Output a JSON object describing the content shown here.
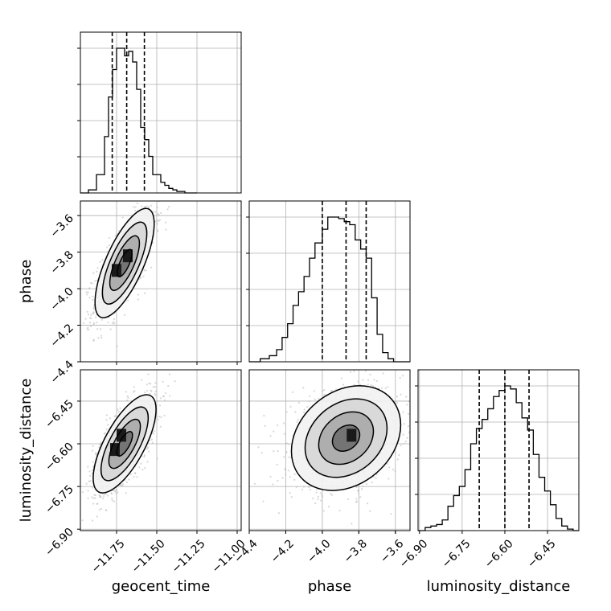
{
  "chart_data": {
    "type": "corner",
    "grid": true,
    "colors": {
      "hist": "#000000",
      "grid": "#b0b0b0",
      "samples": "#bdbdbd"
    },
    "params": [
      "geocent_time",
      "phase",
      "luminosity_distance"
    ],
    "axis_labels": [
      "geocent_time",
      "phase",
      "luminosity_distance"
    ],
    "ranges": {
      "geocent_time": [
        -11.975,
        -10.975
      ],
      "phase": [
        -4.4,
        -3.52
      ],
      "luminosity_distance": [
        -6.905,
        -6.34
      ]
    },
    "ticks": {
      "geocent_time": {
        "values": [
          -11.75,
          -11.5,
          -11.25,
          -11.0
        ],
        "labels": [
          "−11.75",
          "−11.50",
          "−11.25",
          "−11.00"
        ]
      },
      "phase": {
        "values": [
          -4.4,
          -4.2,
          -4.0,
          -3.8,
          -3.6
        ],
        "labels": [
          "−4.4",
          "−4.2",
          "−4.0",
          "−3.8",
          "−3.6"
        ]
      },
      "luminosity_distance": {
        "values": [
          -6.9,
          -6.75,
          -6.6,
          -6.45
        ],
        "labels": [
          "−6.90",
          "−6.75",
          "−6.60",
          "−6.45"
        ]
      }
    },
    "histograms": {
      "geocent_time": {
        "edges": [
          -11.975,
          -11.925,
          -11.875,
          -11.825,
          -11.8,
          -11.775,
          -11.75,
          -11.725,
          -11.7,
          -11.675,
          -11.65,
          -11.625,
          -11.6,
          -11.575,
          -11.55,
          -11.525,
          -11.5,
          -11.475,
          -11.45,
          -11.425,
          -11.4,
          -11.375,
          -11.35,
          -11.325,
          -11.3,
          -11.275,
          -11.25
        ],
        "counts": [
          0,
          2,
          12,
          37,
          63,
          81,
          95,
          95,
          90,
          93,
          86,
          68,
          43,
          35,
          24,
          12,
          12,
          7,
          5,
          3,
          2,
          1,
          1,
          0,
          0,
          0
        ],
        "quantiles": [
          -11.777,
          -11.687,
          -11.577
        ]
      },
      "phase": {
        "edges": [
          -4.4,
          -4.34,
          -4.29,
          -4.25,
          -4.22,
          -4.19,
          -4.16,
          -4.13,
          -4.1,
          -4.07,
          -4.04,
          -4.0,
          -3.97,
          -3.94,
          -3.91,
          -3.88,
          -3.85,
          -3.82,
          -3.79,
          -3.76,
          -3.73,
          -3.7,
          -3.67,
          -3.64,
          -3.61,
          -3.58,
          -3.55,
          -3.52
        ],
        "counts": [
          0,
          2,
          4,
          8,
          16,
          25,
          37,
          46,
          56,
          68,
          78,
          87,
          95,
          95,
          94,
          92,
          90,
          80,
          74,
          68,
          42,
          18,
          6,
          2,
          0,
          0,
          0
        ],
        "quantiles": [
          -4.0,
          -3.87,
          -3.76
        ]
      },
      "luminosity_distance": {
        "edges": [
          -6.905,
          -6.88,
          -6.86,
          -6.84,
          -6.82,
          -6.8,
          -6.78,
          -6.76,
          -6.74,
          -6.72,
          -6.7,
          -6.68,
          -6.66,
          -6.64,
          -6.62,
          -6.6,
          -6.58,
          -6.56,
          -6.54,
          -6.52,
          -6.5,
          -6.48,
          -6.46,
          -6.44,
          -6.42,
          -6.4,
          -6.38,
          -6.36,
          -6.34
        ],
        "counts": [
          0,
          2,
          3,
          4,
          7,
          16,
          23,
          29,
          40,
          57,
          67,
          73,
          80,
          88,
          92,
          95,
          93,
          84,
          74,
          66,
          50,
          35,
          26,
          17,
          8,
          3,
          1,
          0
        ],
        "quantiles": [
          -6.69,
          -6.6,
          -6.515
        ]
      }
    },
    "joint": [
      {
        "x": "geocent_time",
        "y": "phase",
        "center": [
          -11.7,
          -3.86
        ],
        "sigma": [
          0.08,
          0.13
        ],
        "rho": 0.72,
        "peaks": [
          [
            -11.75,
            -3.9
          ],
          [
            -11.68,
            -3.82
          ]
        ]
      },
      {
        "x": "geocent_time",
        "y": "luminosity_distance",
        "center": [
          -11.7,
          -6.6
        ],
        "sigma": [
          0.085,
          0.075
        ],
        "rho": 0.7,
        "peaks": [
          [
            -11.76,
            -6.62
          ],
          [
            -11.72,
            -6.57
          ]
        ]
      },
      {
        "x": "phase",
        "y": "luminosity_distance",
        "center": [
          -3.87,
          -6.58
        ],
        "sigma": [
          0.13,
          0.08
        ],
        "rho": 0.25,
        "peaks": [
          [
            -3.84,
            -6.57
          ]
        ]
      }
    ],
    "contour_levels_sigma": [
      0.5,
      1.0,
      1.5,
      2.0
    ]
  }
}
